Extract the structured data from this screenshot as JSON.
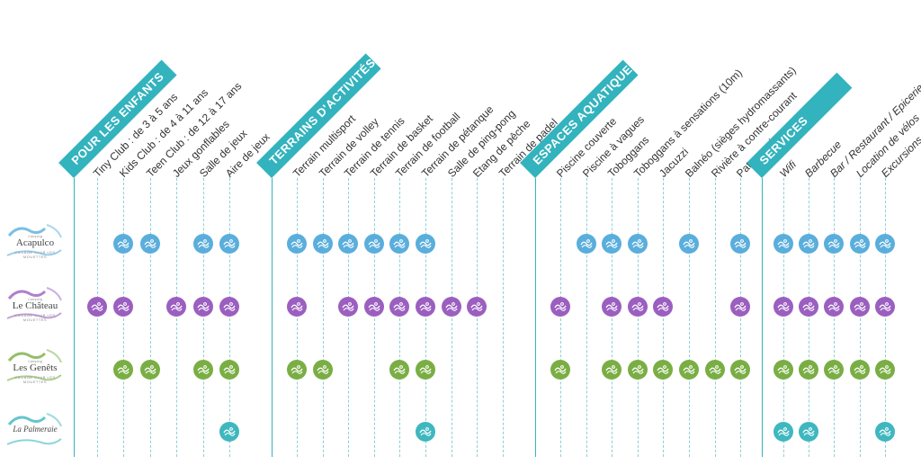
{
  "colors": {
    "accent": "#33b3bd",
    "acapulco": "#5aaedc",
    "chateau": "#9b5fc0",
    "genets": "#7aae44",
    "palmeraie": "#3fb7bf"
  },
  "sections": [
    {
      "id": "enfants",
      "title": "POUR LES ENFANTS",
      "italic": false,
      "columns": [
        "Tiny Club : de 3 à 5 ans",
        "Kids Club : de 4 à 11 ans",
        "Teen Club : de 12 à 17 ans",
        "Jeux gonflables",
        "Salle de jeux",
        "Aire de jeux"
      ]
    },
    {
      "id": "terrains",
      "title": "TERRAINS D'ACTIVITÉS",
      "italic": false,
      "columns": [
        "Terrain multisport",
        "Terrain de volley",
        "Terrain de tennis",
        "Terrain de basket",
        "Terrain de football",
        "Terrain de pétanque",
        "Salle de ping-pong",
        "Etang de pêche",
        "Terrain de padel"
      ]
    },
    {
      "id": "aquatiques",
      "title": "ESPACES AQUATIQUES",
      "italic": false,
      "columns": [
        "Piscine couverte",
        "Piscine à vagues",
        "Toboggans",
        "Toboggans à sensations (10m)",
        "Jacuzzi",
        "Balnéo (sièges hydromassants)",
        "Rivière à contre-courant",
        "Pataugeoire"
      ]
    },
    {
      "id": "services",
      "title": "SERVICES",
      "italic": true,
      "columns": [
        "Wifi",
        "Barbecue",
        "Bar / Restaurant / Epicerie",
        "Location de vélos",
        "Excursions"
      ]
    }
  ],
  "campings": [
    {
      "id": "acapulco",
      "pre": "Camping",
      "name": "Acapulco",
      "sub": "VILLAGE CLUB LES MOUETTES",
      "color_key": "acapulco",
      "icon": "acapulco-logo-icon",
      "marks": {
        "enfants": [
          0,
          1,
          1,
          0,
          1,
          1
        ],
        "terrains": [
          1,
          1,
          1,
          1,
          1,
          1,
          0,
          0,
          0
        ],
        "aquatiques": [
          0,
          1,
          1,
          1,
          0,
          1,
          0,
          1
        ],
        "services": [
          1,
          1,
          1,
          1,
          1
        ]
      }
    },
    {
      "id": "chateau",
      "pre": "Camping",
      "name": "Le Château",
      "sub": "VILLAGE CLUB LES MOUETTES",
      "color_key": "chateau",
      "icon": "chateau-logo-icon",
      "marks": {
        "enfants": [
          1,
          1,
          0,
          1,
          1,
          1
        ],
        "terrains": [
          1,
          0,
          1,
          1,
          1,
          1,
          1,
          1,
          0
        ],
        "aquatiques": [
          1,
          0,
          1,
          1,
          1,
          0,
          0,
          1
        ],
        "services": [
          1,
          1,
          1,
          1,
          1
        ]
      }
    },
    {
      "id": "genets",
      "pre": "Camping",
      "name": "Les Genêts",
      "sub": "VILLAGE CLUB LES MOUETTES",
      "color_key": "genets",
      "icon": "genets-logo-icon",
      "marks": {
        "enfants": [
          0,
          1,
          1,
          0,
          1,
          1
        ],
        "terrains": [
          1,
          1,
          0,
          0,
          1,
          1,
          0,
          0,
          0
        ],
        "aquatiques": [
          1,
          0,
          1,
          1,
          1,
          1,
          1,
          1
        ],
        "services": [
          1,
          1,
          1,
          1,
          1
        ]
      }
    },
    {
      "id": "palmeraie",
      "pre": "",
      "name": "La Palmeraie",
      "sub": "",
      "color_key": "palmeraie",
      "icon": "palmeraie-logo-icon",
      "marks": {
        "enfants": [
          0,
          0,
          0,
          0,
          0,
          1
        ],
        "terrains": [
          0,
          0,
          0,
          0,
          0,
          1,
          0,
          0,
          0
        ],
        "aquatiques": [
          0,
          0,
          0,
          0,
          0,
          0,
          0,
          0
        ],
        "services": [
          1,
          1,
          0,
          0,
          1
        ]
      }
    }
  ]
}
